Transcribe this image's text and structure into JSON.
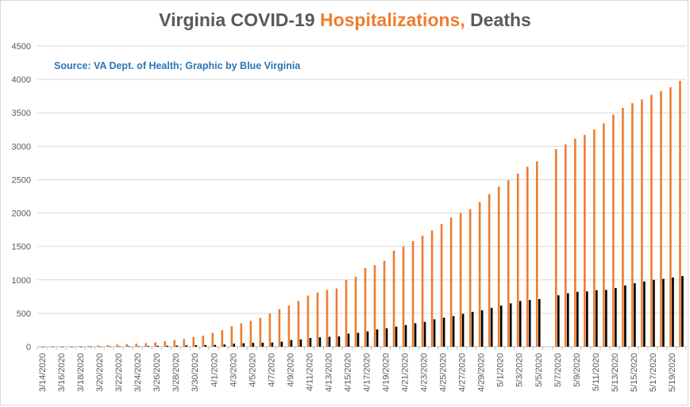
{
  "chart_data": {
    "type": "bar",
    "title_parts": [
      "Virginia COVID-19 ",
      "Hospitalizations,",
      " Deaths"
    ],
    "annotation": "Source: VA Dept. of Health; Graphic by Blue Virginia",
    "ylim": [
      0,
      4500
    ],
    "y_ticks": [
      0,
      500,
      1000,
      1500,
      2000,
      2500,
      3000,
      3500,
      4000,
      4500
    ],
    "grid": "horizontal",
    "categories": [
      "3/14/2020",
      "3/15/2020",
      "3/16/2020",
      "3/17/2020",
      "3/18/2020",
      "3/19/2020",
      "3/20/2020",
      "3/21/2020",
      "3/22/2020",
      "3/23/2020",
      "3/24/2020",
      "3/25/2020",
      "3/26/2020",
      "3/27/2020",
      "3/28/2020",
      "3/29/2020",
      "3/30/2020",
      "3/31/2020",
      "4/1/2020",
      "4/2/2020",
      "4/3/2020",
      "4/4/2020",
      "4/5/2020",
      "4/6/2020",
      "4/7/2020",
      "4/8/2020",
      "4/9/2020",
      "4/10/2020",
      "4/11/2020",
      "4/12/2020",
      "4/13/2020",
      "4/14/2020",
      "4/15/2020",
      "4/16/2020",
      "4/17/2020",
      "4/18/2020",
      "4/19/2020",
      "4/20/2020",
      "4/21/2020",
      "4/22/2020",
      "4/23/2020",
      "4/24/2020",
      "4/25/2020",
      "4/26/2020",
      "4/27/2020",
      "4/28/2020",
      "4/29/2020",
      "4/30/2020",
      "5/1/2020",
      "5/2/2020",
      "5/3/2020",
      "5/4/2020",
      "5/5/2020",
      "5/6/2020",
      "5/7/2020",
      "5/8/2020",
      "5/9/2020",
      "5/10/2020",
      "5/11/2020",
      "5/12/2020",
      "5/13/2020",
      "5/14/2020",
      "5/15/2020",
      "5/16/2020",
      "5/17/2020",
      "5/18/2020",
      "5/19/2020",
      "5/20/2020"
    ],
    "tick_labels": [
      "3/14/2020",
      "",
      "3/16/2020",
      "",
      "3/18/2020",
      "",
      "3/20/2020",
      "",
      "3/22/2020",
      "",
      "3/24/2020",
      "",
      "3/26/2020",
      "",
      "3/28/2020",
      "",
      "3/30/2020",
      "",
      "4/1/2020",
      "",
      "4/3/2020",
      "",
      "4/5/2020",
      "",
      "4/7/2020",
      "",
      "4/9/2020",
      "",
      "4/11/2020",
      "",
      "4/13/2020",
      "",
      "4/15/2020",
      "",
      "4/17/2020",
      "",
      "4/19/2020",
      "",
      "4/21/2020",
      "",
      "4/23/2020",
      "",
      "4/25/2020",
      "",
      "4/27/2020",
      "",
      "4/29/2020",
      "",
      "5/1/2020",
      "",
      "5/3/2020",
      "",
      "5/5/2020",
      "",
      "5/7/2020",
      "",
      "5/9/2020",
      "",
      "5/11/2020",
      "",
      "5/13/2020",
      "",
      "5/15/2020",
      "",
      "5/17/2020",
      "",
      "5/19/2020",
      ""
    ],
    "series": [
      {
        "color": "#ed7d31",
        "values": [
          1,
          2,
          5,
          6,
          10,
          15,
          19,
          25,
          32,
          39,
          45,
          54,
          65,
          83,
          100,
          114,
          145,
          165,
          208,
          248,
          305,
          349,
          390,
          431,
          497,
          563,
          615,
          685,
          765,
          812,
          849,
          872,
          1002,
          1048,
          1179,
          1221,
          1286,
          1438,
          1500,
          1581,
          1662,
          1741,
          1837,
          1933,
          2003,
          2059,
          2165,
          2284,
          2396,
          2490,
          2591,
          2694,
          2773,
          null,
          2957,
          3026,
          3116,
          3169,
          3251,
          3343,
          3475,
          3575,
          3644,
          3700,
          3771,
          3826,
          3883,
          3979
        ]
      },
      {
        "color": "#000000",
        "values": [
          0,
          0,
          0,
          0,
          0,
          1,
          2,
          3,
          4,
          6,
          7,
          10,
          13,
          14,
          17,
          20,
          22,
          25,
          27,
          33,
          45,
          52,
          58,
          60,
          63,
          75,
          99,
          109,
          130,
          141,
          149,
          154,
          195,
          208,
          229,
          258,
          277,
          300,
          324,
          351,
          372,
          410,
          434,
          458,
          492,
          522,
          545,
          581,
          616,
          648,
          684,
          700,
          713,
          null,
          769,
          800,
          822,
          827,
          846,
          850,
          877,
          917,
          949,
          976,
          1000,
          1014,
          1036,
          1057
        ]
      }
    ]
  }
}
